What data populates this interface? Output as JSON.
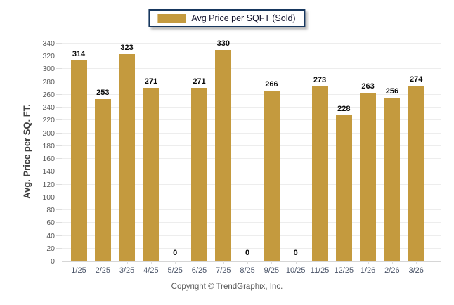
{
  "legend": {
    "label": "Avg Price per SQFT (Sold)",
    "swatch_color": "#c49a3e"
  },
  "footer": {
    "copyright": "Copyright © TrendGraphix, Inc."
  },
  "chart_data": {
    "type": "bar",
    "title": "",
    "categories": [
      "1/25",
      "2/25",
      "3/25",
      "4/25",
      "5/25",
      "6/25",
      "7/25",
      "8/25",
      "9/25",
      "10/25",
      "11/25",
      "12/25",
      "1/26",
      "2/26",
      "3/26"
    ],
    "values": [
      314,
      253,
      323,
      271,
      0,
      271,
      330,
      0,
      266,
      0,
      273,
      228,
      263,
      256,
      274
    ],
    "series": [
      {
        "name": "Avg Price per SQFT (Sold)",
        "values": [
          314,
          253,
          323,
          271,
          0,
          271,
          330,
          0,
          266,
          0,
          273,
          228,
          263,
          256,
          274
        ]
      }
    ],
    "xlabel": "",
    "ylabel": "Avg. Price per SQ. FT.",
    "ylim": [
      0,
      340
    ],
    "ytick_step": 20,
    "grid": true,
    "legend_position": "top-center",
    "bar_color": "#c49a3e",
    "data_labels": true
  }
}
